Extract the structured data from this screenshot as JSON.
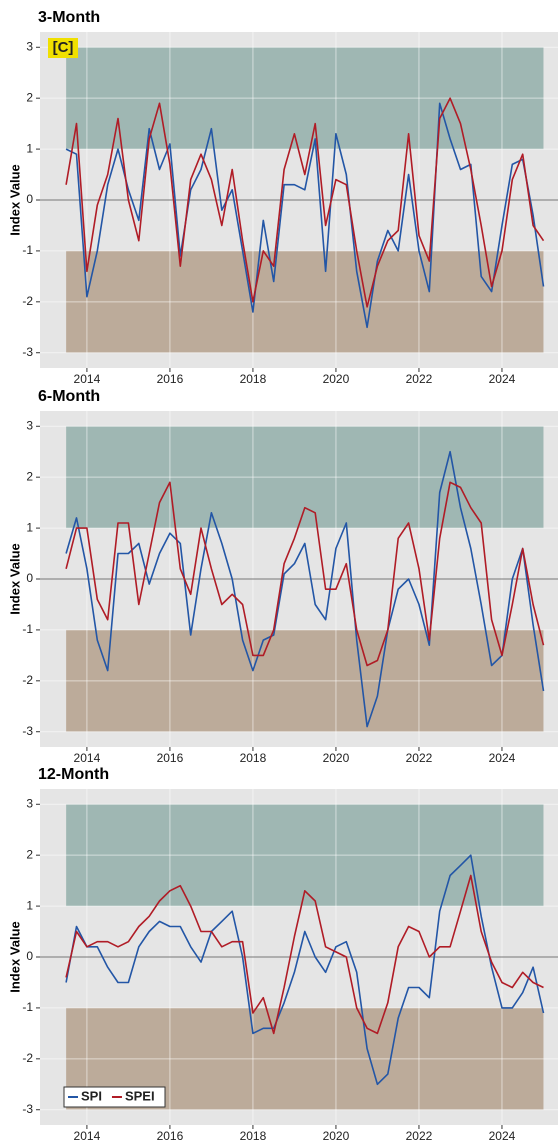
{
  "chart_data": [
    {
      "type": "line",
      "title": "3-Month",
      "y_label": "Index Value",
      "annotation": "[C]",
      "x": [
        2013.5,
        2013.75,
        2014,
        2014.25,
        2014.5,
        2014.75,
        2015,
        2015.25,
        2015.5,
        2015.75,
        2016,
        2016.25,
        2016.5,
        2016.75,
        2017,
        2017.25,
        2017.5,
        2017.75,
        2018,
        2018.25,
        2018.5,
        2018.75,
        2019,
        2019.25,
        2019.5,
        2019.75,
        2020,
        2020.25,
        2020.5,
        2020.75,
        2021,
        2021.25,
        2021.5,
        2021.75,
        2022,
        2022.25,
        2022.5,
        2022.75,
        2023,
        2023.25,
        2023.5,
        2023.75,
        2024,
        2024.25,
        2024.5,
        2024.75,
        2025
      ],
      "series": [
        {
          "name": "SPI",
          "color": "#2356a6",
          "values": [
            1.0,
            0.9,
            -1.9,
            -1.0,
            0.3,
            1.0,
            0.2,
            -0.4,
            1.4,
            0.6,
            1.1,
            -1.1,
            0.2,
            0.6,
            1.4,
            -0.2,
            0.2,
            -1.0,
            -2.2,
            -0.4,
            -1.6,
            0.3,
            0.3,
            0.2,
            1.2,
            -1.4,
            1.3,
            0.5,
            -1.4,
            -2.5,
            -1.2,
            -0.6,
            -1.0,
            0.5,
            -1.0,
            -1.8,
            1.9,
            1.2,
            0.6,
            0.7,
            -1.5,
            -1.8,
            -0.5,
            0.7,
            0.8,
            -0.3,
            -1.7
          ]
        },
        {
          "name": "SPEI",
          "color": "#b01c26",
          "values": [
            0.3,
            1.5,
            -1.4,
            -0.1,
            0.5,
            1.6,
            0.0,
            -0.8,
            1.2,
            1.9,
            0.7,
            -1.3,
            0.4,
            0.9,
            0.4,
            -0.5,
            0.6,
            -0.8,
            -2.0,
            -1.0,
            -1.3,
            0.6,
            1.3,
            0.5,
            1.5,
            -0.5,
            0.4,
            0.3,
            -1.0,
            -2.1,
            -1.3,
            -0.8,
            -0.6,
            1.3,
            -0.7,
            -1.2,
            1.6,
            2.0,
            1.5,
            0.6,
            -0.5,
            -1.7,
            -1.0,
            0.4,
            0.9,
            -0.5,
            -0.8
          ]
        }
      ],
      "bands": [
        {
          "from": 1,
          "to": 3,
          "color": "#9fb7b3"
        },
        {
          "from": -3,
          "to": -1,
          "color": "#bcab9a"
        }
      ],
      "xlim": [
        2012.87,
        2025.35
      ],
      "xticks": [
        2014,
        2016,
        2018,
        2020,
        2022,
        2024
      ],
      "ylim": [
        -3.3,
        3.3
      ],
      "yticks": [
        -3,
        -2,
        -1,
        0,
        1,
        2,
        3
      ],
      "grid": true
    },
    {
      "type": "line",
      "title": "6-Month",
      "y_label": "Index Value",
      "x": [
        2013.5,
        2013.75,
        2014,
        2014.25,
        2014.5,
        2014.75,
        2015,
        2015.25,
        2015.5,
        2015.75,
        2016,
        2016.25,
        2016.5,
        2016.75,
        2017,
        2017.25,
        2017.5,
        2017.75,
        2018,
        2018.25,
        2018.5,
        2018.75,
        2019,
        2019.25,
        2019.5,
        2019.75,
        2020,
        2020.25,
        2020.5,
        2020.75,
        2021,
        2021.25,
        2021.5,
        2021.75,
        2022,
        2022.25,
        2022.5,
        2022.75,
        2023,
        2023.25,
        2023.5,
        2023.75,
        2024,
        2024.25,
        2024.5,
        2024.75,
        2025
      ],
      "series": [
        {
          "name": "SPI",
          "color": "#2356a6",
          "values": [
            0.5,
            1.2,
            0.2,
            -1.2,
            -1.8,
            0.5,
            0.5,
            0.7,
            -0.1,
            0.5,
            0.9,
            0.7,
            -1.1,
            0.2,
            1.3,
            0.7,
            0.0,
            -1.2,
            -1.8,
            -1.2,
            -1.1,
            0.1,
            0.3,
            0.7,
            -0.5,
            -0.8,
            0.6,
            1.1,
            -1.2,
            -2.9,
            -2.3,
            -1.0,
            -0.2,
            0.0,
            -0.5,
            -1.3,
            1.7,
            2.5,
            1.4,
            0.6,
            -0.5,
            -1.7,
            -1.5,
            0.0,
            0.6,
            -0.9,
            -2.2
          ]
        },
        {
          "name": "SPEI",
          "color": "#b01c26",
          "values": [
            0.2,
            1.0,
            1.0,
            -0.4,
            -0.8,
            1.1,
            1.1,
            -0.5,
            0.5,
            1.5,
            1.9,
            0.2,
            -0.3,
            1.0,
            0.2,
            -0.5,
            -0.3,
            -0.5,
            -1.5,
            -1.5,
            -1.0,
            0.3,
            0.8,
            1.4,
            1.3,
            -0.2,
            -0.2,
            0.3,
            -1.0,
            -1.7,
            -1.6,
            -1.0,
            0.8,
            1.1,
            0.2,
            -1.2,
            0.8,
            1.9,
            1.8,
            1.4,
            1.1,
            -0.8,
            -1.5,
            -0.5,
            0.6,
            -0.5,
            -1.3
          ]
        }
      ],
      "bands": [
        {
          "from": 1,
          "to": 3,
          "color": "#9fb7b3"
        },
        {
          "from": -3,
          "to": -1,
          "color": "#bcab9a"
        }
      ],
      "xlim": [
        2012.87,
        2025.35
      ],
      "xticks": [
        2014,
        2016,
        2018,
        2020,
        2022,
        2024
      ],
      "ylim": [
        -3.3,
        3.3
      ],
      "yticks": [
        -3,
        -2,
        -1,
        0,
        1,
        2,
        3
      ],
      "grid": true
    },
    {
      "type": "line",
      "title": "12-Month",
      "y_label": "Index Value",
      "legend": "lower left",
      "x": [
        2013.5,
        2013.75,
        2014,
        2014.25,
        2014.5,
        2014.75,
        2015,
        2015.25,
        2015.5,
        2015.75,
        2016,
        2016.25,
        2016.5,
        2016.75,
        2017,
        2017.25,
        2017.5,
        2017.75,
        2018,
        2018.25,
        2018.5,
        2018.75,
        2019,
        2019.25,
        2019.5,
        2019.75,
        2020,
        2020.25,
        2020.5,
        2020.75,
        2021,
        2021.25,
        2021.5,
        2021.75,
        2022,
        2022.25,
        2022.5,
        2022.75,
        2023,
        2023.25,
        2023.5,
        2023.75,
        2024,
        2024.25,
        2024.5,
        2024.75,
        2025
      ],
      "series": [
        {
          "name": "SPI",
          "color": "#2356a6",
          "values": [
            -0.5,
            0.6,
            0.2,
            0.2,
            -0.2,
            -0.5,
            -0.5,
            0.2,
            0.5,
            0.7,
            0.6,
            0.6,
            0.2,
            -0.1,
            0.5,
            0.7,
            0.9,
            0.0,
            -1.5,
            -1.4,
            -1.4,
            -0.9,
            -0.3,
            0.5,
            0.0,
            -0.3,
            0.2,
            0.3,
            -0.3,
            -1.8,
            -2.5,
            -2.3,
            -1.2,
            -0.6,
            -0.6,
            -0.8,
            0.9,
            1.6,
            1.8,
            2.0,
            0.8,
            -0.2,
            -1.0,
            -1.0,
            -0.7,
            -0.2,
            -1.1
          ]
        },
        {
          "name": "SPEI",
          "color": "#b01c26",
          "values": [
            -0.4,
            0.5,
            0.2,
            0.3,
            0.3,
            0.2,
            0.3,
            0.6,
            0.8,
            1.1,
            1.3,
            1.4,
            1.0,
            0.5,
            0.5,
            0.2,
            0.3,
            0.3,
            -1.1,
            -0.8,
            -1.5,
            -0.6,
            0.4,
            1.3,
            1.1,
            0.2,
            0.1,
            0.0,
            -1.0,
            -1.4,
            -1.5,
            -0.9,
            0.2,
            0.6,
            0.5,
            0.0,
            0.2,
            0.2,
            0.9,
            1.6,
            0.5,
            -0.1,
            -0.5,
            -0.6,
            -0.3,
            -0.5,
            -0.6
          ]
        }
      ],
      "bands": [
        {
          "from": 1,
          "to": 3,
          "color": "#9fb7b3"
        },
        {
          "from": -3,
          "to": -1,
          "color": "#bcab9a"
        }
      ],
      "xlim": [
        2012.87,
        2025.35
      ],
      "xticks": [
        2014,
        2016,
        2018,
        2020,
        2022,
        2024
      ],
      "ylim": [
        -3.3,
        3.3
      ],
      "yticks": [
        -3,
        -2,
        -1,
        0,
        1,
        2,
        3
      ],
      "grid": true
    }
  ]
}
